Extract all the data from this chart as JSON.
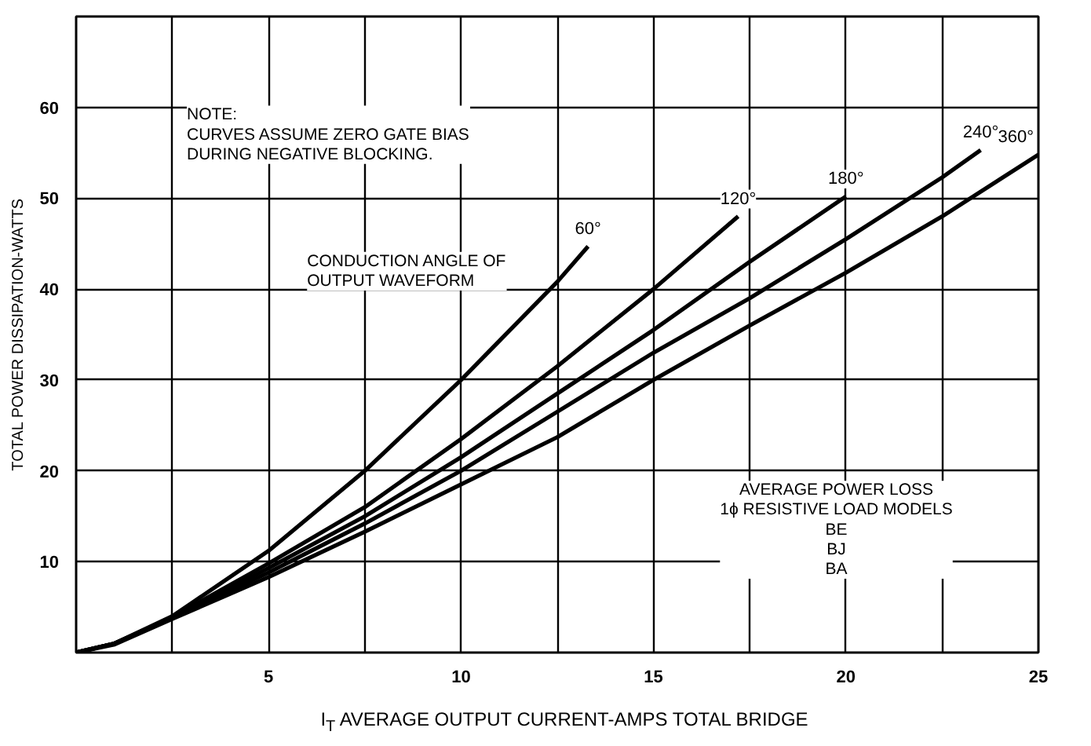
{
  "chart_data": {
    "type": "line",
    "xlabel": "I$_{T}$ AVERAGE OUTPUT CURRENT-AMPS TOTAL BRIDGE",
    "ylabel": "TOTAL POWER DISSIPATION-WATTS",
    "xlim": [
      0,
      25
    ],
    "ylim": [
      0,
      70
    ],
    "xticks": [
      {
        "value": 2.5,
        "label": null
      },
      5,
      {
        "value": 7.5,
        "label": null
      },
      10,
      {
        "value": 12.5,
        "label": null
      },
      15,
      {
        "value": 17.5,
        "label": null
      },
      20,
      {
        "value": 22.5,
        "label": null
      },
      25
    ],
    "yticks": [
      10,
      20,
      30,
      40,
      50,
      60
    ],
    "grid": true,
    "marker": "none",
    "line_style": "solid",
    "series": [
      {
        "name": "60°",
        "color": "#000000",
        "x": [
          0,
          1,
          2.5,
          5,
          7.5,
          10,
          12.5,
          13.3
        ],
        "values": [
          0,
          1.0,
          4.0,
          11.2,
          20,
          30,
          40.8,
          44.7
        ]
      },
      {
        "name": "120°",
        "color": "#000000",
        "x": [
          0,
          1,
          2.5,
          5,
          7.5,
          10,
          12.5,
          15,
          17.2
        ],
        "values": [
          0,
          1.0,
          3.9,
          9.8,
          16,
          23.5,
          31.5,
          40,
          48
        ]
      },
      {
        "name": "180°",
        "color": "#000000",
        "x": [
          0,
          1,
          2.5,
          5,
          7.5,
          10,
          12.5,
          15,
          17.5,
          20
        ],
        "values": [
          0,
          1.0,
          3.8,
          9.3,
          15,
          21.5,
          28.5,
          35.5,
          43,
          50.2
        ]
      },
      {
        "name": "240°",
        "color": "#000000",
        "x": [
          0,
          1,
          2.5,
          5,
          7.5,
          10,
          12.5,
          15,
          17.5,
          20,
          22.5,
          23.5
        ],
        "values": [
          0,
          1.0,
          3.8,
          8.8,
          14.2,
          20,
          26.5,
          33,
          39,
          45.5,
          52.3,
          55.3
        ]
      },
      {
        "name": "360°",
        "color": "#000000",
        "x": [
          0,
          1,
          2.5,
          5,
          7.5,
          10,
          12.5,
          15,
          17.5,
          20,
          22.5,
          25
        ],
        "values": [
          0,
          0.9,
          3.7,
          8.3,
          13.3,
          18.5,
          23.7,
          30,
          36,
          41.8,
          48,
          54.8
        ]
      }
    ],
    "annotations": [
      "NOTE:\nCURVES ASSUME ZERO GATE BIAS\nDURING NEGATIVE BLOCKING.",
      "CONDUCTION ANGLE OF\nOUTPUT WAVEFORM",
      "AVERAGE POWER LOSS\n1ϕ RESISTIVE LOAD MODELS\nBE\nBJ\nBA"
    ]
  }
}
